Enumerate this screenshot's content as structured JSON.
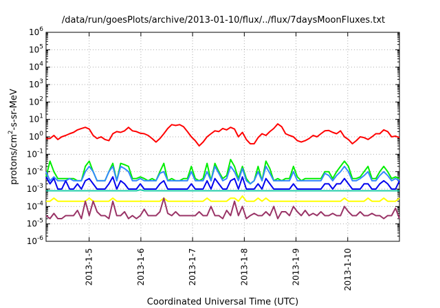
{
  "chart_data": {
    "type": "line",
    "title": "/data/run/goesPlots/archive/2013-01-10/flux/../flux/7daysMoonFluxes.txt",
    "xlabel": "Coordinated Universal Time (UTC)",
    "ylabel": {
      "prefix": "protons/cm",
      "sup": "2",
      "suffix": "-s-sr-MeV"
    },
    "yscale": "log",
    "ylim": [
      1e-06,
      1000000.0
    ],
    "y_ticks": [
      {
        "base": "10",
        "exp": "-6",
        "value": 1e-06
      },
      {
        "base": "10",
        "exp": "-5",
        "value": 1e-05
      },
      {
        "base": "10",
        "exp": "-4",
        "value": 0.0001
      },
      {
        "base": "10",
        "exp": "-3",
        "value": 0.001
      },
      {
        "base": "10",
        "exp": "-2",
        "value": 0.01
      },
      {
        "base": "10",
        "exp": "-1",
        "value": 0.1
      },
      {
        "base": "10",
        "exp": "0",
        "value": 1.0
      },
      {
        "base": "10",
        "exp": "1",
        "value": 10.0
      },
      {
        "base": "10",
        "exp": "2",
        "value": 100.0
      },
      {
        "base": "10",
        "exp": "3",
        "value": 1000.0
      },
      {
        "base": "10",
        "exp": "4",
        "value": 10000.0
      },
      {
        "base": "10",
        "exp": "5",
        "value": 100000.0
      },
      {
        "base": "10",
        "exp": "6",
        "value": 1000000.0
      }
    ],
    "xlim": [
      "2013-01-04 04:00",
      "2013-01-11 00:00"
    ],
    "x_ticks": [
      "2013-1-5",
      "2013-1-6",
      "2013-1-7",
      "2013-1-8",
      "2013-1-9",
      "2013-1-10"
    ],
    "grid": true,
    "series": [
      {
        "color": "#ff0000",
        "x_start": "2013-01-04 04:00",
        "x_end": "2013-01-11 00:00",
        "values": [
          0.8,
          0.8,
          1.2,
          0.7,
          1.0,
          1.2,
          1.5,
          1.8,
          2.5,
          3.0,
          3.5,
          2.8,
          1.2,
          0.8,
          1.0,
          0.7,
          0.6,
          1.5,
          2.0,
          1.8,
          2.2,
          3.5,
          2.2,
          2.0,
          1.6,
          1.5,
          1.2,
          0.8,
          0.5,
          0.8,
          1.5,
          3.0,
          5.0,
          4.5,
          5.0,
          3.8,
          2.0,
          1.0,
          0.6,
          0.3,
          0.5,
          1.0,
          1.5,
          2.2,
          2.0,
          3.0,
          2.5,
          3.5,
          2.8,
          1.0,
          1.8,
          0.7,
          0.4,
          0.4,
          0.9,
          1.5,
          1.2,
          2.0,
          3.0,
          5.5,
          3.8,
          1.5,
          1.2,
          1.0,
          0.6,
          0.5,
          0.6,
          0.8,
          1.2,
          1.0,
          1.5,
          2.2,
          2.3,
          1.8,
          1.5,
          2.2,
          1.0,
          0.7,
          0.4,
          0.6,
          1.0,
          0.9,
          0.7,
          1.0,
          1.5,
          1.5,
          2.5,
          2.0,
          1.0,
          1.1,
          0.9
        ]
      },
      {
        "color": "#00ee00",
        "x_start": "2013-01-04 04:00",
        "x_end": "2013-01-11 00:00",
        "values": [
          0.005,
          0.04,
          0.01,
          0.004,
          0.004,
          0.004,
          0.004,
          0.004,
          0.003,
          0.003,
          0.02,
          0.04,
          0.01,
          0.003,
          0.003,
          0.003,
          0.01,
          0.03,
          0.003,
          0.03,
          0.025,
          0.02,
          0.004,
          0.004,
          0.005,
          0.004,
          0.003,
          0.004,
          0.003,
          0.01,
          0.03,
          0.003,
          0.004,
          0.003,
          0.003,
          0.004,
          0.004,
          0.02,
          0.004,
          0.003,
          0.004,
          0.03,
          0.003,
          0.03,
          0.01,
          0.004,
          0.006,
          0.05,
          0.02,
          0.004,
          0.02,
          0.004,
          0.002,
          0.003,
          0.02,
          0.003,
          0.04,
          0.015,
          0.003,
          0.004,
          0.003,
          0.004,
          0.004,
          0.02,
          0.005,
          0.003,
          0.004,
          0.004,
          0.004,
          0.004,
          0.004,
          0.01,
          0.01,
          0.004,
          0.01,
          0.02,
          0.04,
          0.02,
          0.004,
          0.004,
          0.005,
          0.01,
          0.02,
          0.004,
          0.004,
          0.01,
          0.02,
          0.01,
          0.004,
          0.005,
          0.004
        ]
      },
      {
        "color": "#3388ff",
        "x_start": "2013-01-04 04:00",
        "x_end": "2013-01-11 00:00",
        "values": [
          0.01,
          0.003,
          0.005,
          0.003,
          0.003,
          0.003,
          0.004,
          0.003,
          0.003,
          0.003,
          0.01,
          0.02,
          0.01,
          0.003,
          0.003,
          0.003,
          0.01,
          0.02,
          0.003,
          0.02,
          0.015,
          0.01,
          0.003,
          0.003,
          0.004,
          0.003,
          0.003,
          0.003,
          0.003,
          0.008,
          0.01,
          0.003,
          0.003,
          0.003,
          0.003,
          0.003,
          0.003,
          0.01,
          0.003,
          0.003,
          0.003,
          0.01,
          0.003,
          0.02,
          0.008,
          0.003,
          0.004,
          0.02,
          0.01,
          0.003,
          0.015,
          0.003,
          0.002,
          0.003,
          0.01,
          0.003,
          0.02,
          0.008,
          0.003,
          0.003,
          0.003,
          0.003,
          0.003,
          0.01,
          0.003,
          0.003,
          0.003,
          0.003,
          0.003,
          0.003,
          0.003,
          0.008,
          0.006,
          0.003,
          0.006,
          0.01,
          0.02,
          0.01,
          0.003,
          0.003,
          0.004,
          0.006,
          0.01,
          0.003,
          0.003,
          0.006,
          0.01,
          0.006,
          0.003,
          0.004,
          0.003
        ]
      },
      {
        "color": "#0000ee",
        "x_start": "2013-01-04 04:00",
        "x_end": "2013-01-11 00:00",
        "values": [
          0.005,
          0.002,
          0.004,
          0.001,
          0.001,
          0.003,
          0.001,
          0.001,
          0.002,
          0.001,
          0.003,
          0.004,
          0.002,
          0.001,
          0.001,
          0.001,
          0.002,
          0.005,
          0.001,
          0.003,
          0.002,
          0.001,
          0.001,
          0.001,
          0.002,
          0.001,
          0.001,
          0.001,
          0.001,
          0.002,
          0.003,
          0.001,
          0.001,
          0.001,
          0.001,
          0.001,
          0.001,
          0.002,
          0.001,
          0.001,
          0.001,
          0.003,
          0.001,
          0.004,
          0.002,
          0.001,
          0.001,
          0.003,
          0.004,
          0.001,
          0.005,
          0.001,
          0.001,
          0.001,
          0.002,
          0.001,
          0.004,
          0.002,
          0.001,
          0.001,
          0.001,
          0.001,
          0.001,
          0.002,
          0.001,
          0.001,
          0.001,
          0.001,
          0.001,
          0.001,
          0.001,
          0.002,
          0.002,
          0.001,
          0.002,
          0.002,
          0.004,
          0.002,
          0.001,
          0.001,
          0.001,
          0.002,
          0.002,
          0.001,
          0.001,
          0.002,
          0.003,
          0.002,
          0.001,
          0.001,
          0.003
        ]
      },
      {
        "color": "#22ccaa",
        "x_start": "2013-01-04 04:00",
        "x_end": "2013-01-11 00:00",
        "values": [
          0.0008,
          0.0008,
          0.0008,
          0.0008,
          0.0008,
          0.0008,
          0.0008,
          0.0008,
          0.0008,
          0.0008,
          0.0008,
          0.0008,
          0.0008,
          0.0008,
          0.0008,
          0.0008,
          0.0008,
          0.0008,
          0.0008,
          0.0008,
          0.0008,
          0.0008,
          0.0008,
          0.0008,
          0.0009,
          0.0008,
          0.0008,
          0.0008,
          0.0008,
          0.0008,
          0.0008,
          0.0008,
          0.0008,
          0.0008,
          0.0008,
          0.0008,
          0.0008,
          0.0008,
          0.0008,
          0.0008,
          0.0008,
          0.0008,
          0.0008,
          0.0008,
          0.0008,
          0.0008,
          0.0008,
          0.0008,
          0.0008,
          0.0008,
          0.0008,
          0.0008,
          0.0008,
          0.0008,
          0.0008,
          0.0008,
          0.0008,
          0.0008,
          0.0008,
          0.0008,
          0.0008,
          0.0008,
          0.0008,
          0.0008,
          0.0008,
          0.0008,
          0.0008,
          0.0008,
          0.0008,
          0.0008,
          0.0008,
          0.0008,
          0.0008,
          0.0008,
          0.0008,
          0.0008,
          0.0008,
          0.0008,
          0.0008,
          0.0008,
          0.0008,
          0.0008,
          0.0008,
          0.0008,
          0.0008,
          0.0008,
          0.0008,
          0.0008,
          0.0008,
          0.0008,
          0.0008
        ]
      },
      {
        "color": "#ffff00",
        "x_start": "2013-01-04 04:00",
        "x_end": "2013-01-11 00:00",
        "values": [
          0.0002,
          0.0002,
          0.0003,
          0.0002,
          0.0002,
          0.0002,
          0.0002,
          0.0002,
          0.0002,
          0.0002,
          0.0002,
          0.0003,
          0.0002,
          0.0002,
          0.0002,
          0.0002,
          0.0002,
          0.0003,
          0.0002,
          0.0002,
          0.0002,
          0.0002,
          0.0002,
          0.0002,
          0.0002,
          0.0002,
          0.0002,
          0.0002,
          0.0002,
          0.0002,
          0.0003,
          0.0002,
          0.0002,
          0.0002,
          0.0002,
          0.0002,
          0.0002,
          0.0002,
          0.0002,
          0.0002,
          0.0002,
          0.0003,
          0.0002,
          0.0002,
          0.0002,
          0.0002,
          0.0002,
          0.0003,
          0.0003,
          0.0002,
          0.0004,
          0.0002,
          0.0002,
          0.0002,
          0.0003,
          0.0002,
          0.0003,
          0.0002,
          0.0002,
          0.0002,
          0.0002,
          0.0002,
          0.0002,
          0.0002,
          0.0002,
          0.0002,
          0.0002,
          0.0002,
          0.0002,
          0.0002,
          0.0002,
          0.0002,
          0.0002,
          0.0002,
          0.0002,
          0.0002,
          0.0003,
          0.0002,
          0.0002,
          0.0002,
          0.0002,
          0.0002,
          0.0003,
          0.0002,
          0.0002,
          0.0002,
          0.0003,
          0.0002,
          0.0002,
          0.0002,
          0.0003
        ]
      },
      {
        "color": "#993366",
        "x_start": "2013-01-04 04:00",
        "x_end": "2013-01-11 00:00",
        "values": [
          3e-05,
          2e-05,
          4e-05,
          2e-05,
          2e-05,
          3e-05,
          3e-05,
          3e-05,
          6e-05,
          2e-05,
          0.0002,
          3e-05,
          0.0002,
          5e-05,
          3e-05,
          3e-05,
          2e-05,
          0.0002,
          3e-05,
          3e-05,
          5e-05,
          2e-05,
          3e-05,
          2e-05,
          3e-05,
          7e-05,
          3e-05,
          3e-05,
          3e-05,
          5e-05,
          0.0003,
          4e-05,
          3e-05,
          5e-05,
          3e-05,
          3e-05,
          3e-05,
          3e-05,
          3e-05,
          5e-05,
          3e-05,
          3e-05,
          0.0001,
          3e-05,
          3e-05,
          2e-05,
          6e-05,
          3e-05,
          0.0002,
          3e-05,
          0.0001,
          2e-05,
          3e-05,
          4e-05,
          3e-05,
          3e-05,
          5e-05,
          3e-05,
          0.0001,
          2e-05,
          5e-05,
          5e-05,
          3e-05,
          0.0001,
          5e-05,
          3e-05,
          6e-05,
          3e-05,
          4e-05,
          3e-05,
          5e-05,
          3e-05,
          3e-05,
          4e-05,
          3e-05,
          3e-05,
          0.0001,
          5e-05,
          3e-05,
          3e-05,
          5e-05,
          3e-05,
          3e-05,
          4e-05,
          3e-05,
          3e-05,
          2e-05,
          3e-05,
          3e-05,
          8e-05,
          2e-05
        ]
      }
    ]
  }
}
